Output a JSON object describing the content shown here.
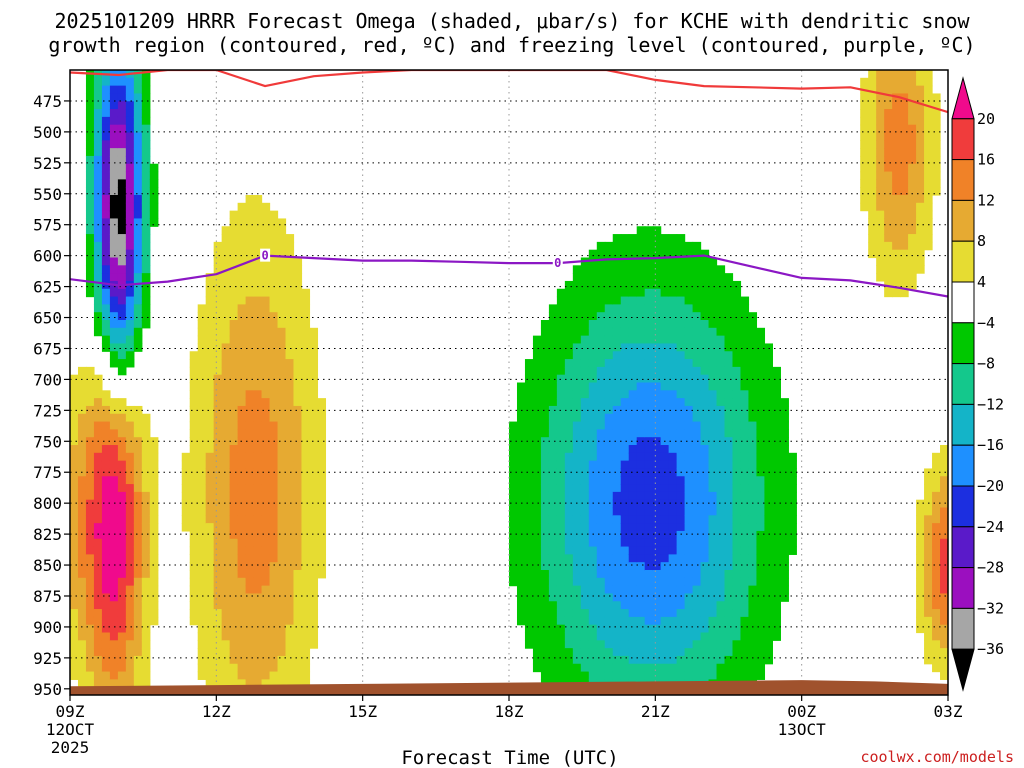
{
  "chart_data": {
    "type": "heatmap",
    "title_line1": "2025101209 HRRR Forecast Omega (shaded, μbar/s) for KCHE with dendritic snow",
    "title_line2": "growth region (contoured, red, ºC) and freezing level (contoured, purple, ºC)",
    "xlabel": "Forecast Time (UTC)",
    "credit": "coolwx.com/models",
    "x_ticks": [
      {
        "hour": 0,
        "label": "09Z",
        "sub1": "12OCT",
        "sub2": "2025"
      },
      {
        "hour": 3,
        "label": "12Z",
        "sub1": "",
        "sub2": ""
      },
      {
        "hour": 6,
        "label": "15Z",
        "sub1": "",
        "sub2": ""
      },
      {
        "hour": 9,
        "label": "18Z",
        "sub1": "",
        "sub2": ""
      },
      {
        "hour": 12,
        "label": "21Z",
        "sub1": "",
        "sub2": ""
      },
      {
        "hour": 15,
        "label": "00Z",
        "sub1": "13OCT",
        "sub2": ""
      },
      {
        "hour": 18,
        "label": "03Z",
        "sub1": "",
        "sub2": ""
      }
    ],
    "x_range": [
      0,
      18
    ],
    "y_ticks": [
      "475",
      "500",
      "525",
      "550",
      "575",
      "600",
      "625",
      "650",
      "675",
      "700",
      "725",
      "750",
      "775",
      "800",
      "825",
      "850",
      "875",
      "900",
      "925",
      "950"
    ],
    "y_range_hpa": [
      450,
      955
    ],
    "colorbar": {
      "labels": [
        "20",
        "16",
        "12",
        "8",
        "4",
        "−4",
        "−8",
        "−12",
        "−16",
        "−20",
        "−24",
        "−28",
        "−32",
        "−36"
      ],
      "levels": [
        -36,
        -32,
        -28,
        -24,
        -20,
        -16,
        -12,
        -8,
        -4,
        4,
        8,
        12,
        16,
        20
      ],
      "colors": [
        "#000000",
        "#a6a6a6",
        "#9b0fbf",
        "#5a1ac9",
        "#1c2fe0",
        "#1e90ff",
        "#14b4c8",
        "#14c88c",
        "#00c800",
        "#ffffff",
        "#e6dc32",
        "#e6aa32",
        "#f08228",
        "#f03c3c",
        "#f00a8c"
      ]
    },
    "omega_features": [
      {
        "name": "strong-upward-core",
        "hour": 1.0,
        "p_hpa": 570,
        "peak": -40
      },
      {
        "name": "strong-downward-core",
        "hour": 0.9,
        "p_hpa": 810,
        "peak": 24
      },
      {
        "name": "lower-subsidence",
        "hour": 3.8,
        "p_hpa": 790,
        "peak": 14
      },
      {
        "name": "western-subsidence",
        "hour": -0.1,
        "p_hpa": 820,
        "peak": 7
      },
      {
        "name": "afternoon-ascent",
        "hour": 11.9,
        "p_hpa": 800,
        "peak": -22
      },
      {
        "name": "upper-subsidence-east",
        "hour": 17.0,
        "p_hpa": 510,
        "peak": 14
      },
      {
        "name": "lowlevel-subsidence-east",
        "hour": 18.0,
        "p_hpa": 850,
        "peak": 18
      }
    ],
    "dgz_top_line_hpa": [
      {
        "hour": 0.0,
        "p": 452
      },
      {
        "hour": 1.0,
        "p": 454
      },
      {
        "hour": 2.0,
        "p": 450
      },
      {
        "hour": 3.0,
        "p": 450
      },
      {
        "hour": 4.0,
        "p": 463
      },
      {
        "hour": 5.0,
        "p": 455
      },
      {
        "hour": 6.0,
        "p": 452
      },
      {
        "hour": 7.0,
        "p": 450
      },
      {
        "hour": 11.0,
        "p": 450
      },
      {
        "hour": 12.0,
        "p": 458
      },
      {
        "hour": 13.0,
        "p": 463
      },
      {
        "hour": 14.0,
        "p": 464
      },
      {
        "hour": 15.0,
        "p": 465
      },
      {
        "hour": 16.0,
        "p": 464
      },
      {
        "hour": 17.0,
        "p": 472
      },
      {
        "hour": 18.0,
        "p": 484
      }
    ],
    "freezing_level_hpa": [
      {
        "hour": 0.0,
        "p": 619
      },
      {
        "hour": 1.0,
        "p": 624
      },
      {
        "hour": 2.0,
        "p": 621
      },
      {
        "hour": 3.0,
        "p": 615
      },
      {
        "hour": 4.0,
        "p": 600
      },
      {
        "hour": 5.0,
        "p": 602
      },
      {
        "hour": 6.0,
        "p": 604
      },
      {
        "hour": 7.0,
        "p": 604
      },
      {
        "hour": 8.0,
        "p": 605
      },
      {
        "hour": 9.0,
        "p": 606
      },
      {
        "hour": 10.0,
        "p": 606
      },
      {
        "hour": 11.0,
        "p": 603
      },
      {
        "hour": 12.0,
        "p": 602
      },
      {
        "hour": 13.0,
        "p": 600
      },
      {
        "hour": 14.0,
        "p": 609
      },
      {
        "hour": 15.0,
        "p": 618
      },
      {
        "hour": 16.0,
        "p": 620
      },
      {
        "hour": 17.0,
        "p": 626
      },
      {
        "hour": 18.0,
        "p": 633
      }
    ],
    "freezing_label": "0",
    "freezing_label_hours": [
      4.0,
      10.0
    ],
    "surface_pressure_hpa": [
      {
        "hour": 0.0,
        "p": 948
      },
      {
        "hour": 3.0,
        "p": 947
      },
      {
        "hour": 6.0,
        "p": 946
      },
      {
        "hour": 9.0,
        "p": 945
      },
      {
        "hour": 12.0,
        "p": 944
      },
      {
        "hour": 15.0,
        "p": 943
      },
      {
        "hour": 16.5,
        "p": 944
      },
      {
        "hour": 18.0,
        "p": 946
      }
    ],
    "line_colors": {
      "dgz": "#f03a3a",
      "freezing": "#8b17c4",
      "ground": "#a0522d"
    }
  }
}
